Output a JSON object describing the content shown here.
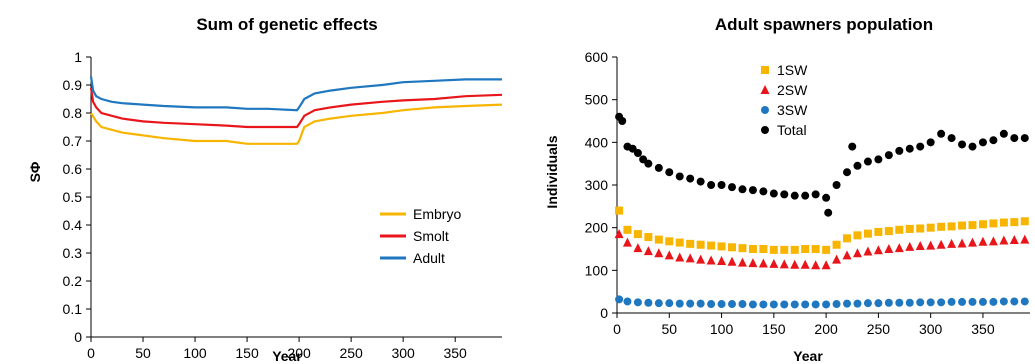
{
  "chart_data": [
    {
      "type": "line",
      "title": "Sum of genetic effects",
      "xlabel": "Year",
      "ylabel": "SΦ",
      "xlim": [
        0,
        395
      ],
      "ylim": [
        0,
        1
      ],
      "xticks": [
        0,
        50,
        100,
        150,
        200,
        250,
        300,
        350
      ],
      "yticks": [
        0,
        0.1,
        0.2,
        0.3,
        0.4,
        0.5,
        0.6,
        0.7,
        0.8,
        0.9,
        1
      ],
      "ytick_labels": [
        "0",
        "0.1",
        "0.2",
        "0.3",
        "0.4",
        "0.5",
        "0.6",
        "0.7",
        "0.8",
        "0.9",
        "1"
      ],
      "legend_position": "bottom-right",
      "series": [
        {
          "name": "Embryo",
          "color": "#F7B500",
          "x": [
            0,
            5,
            10,
            20,
            30,
            50,
            70,
            100,
            130,
            150,
            170,
            198,
            200,
            205,
            215,
            230,
            250,
            280,
            300,
            330,
            360,
            395
          ],
          "y": [
            0.8,
            0.77,
            0.75,
            0.74,
            0.73,
            0.72,
            0.71,
            0.7,
            0.7,
            0.69,
            0.69,
            0.69,
            0.7,
            0.75,
            0.77,
            0.78,
            0.79,
            0.8,
            0.81,
            0.82,
            0.825,
            0.83
          ]
        },
        {
          "name": "Smolt",
          "color": "#E8161B",
          "x": [
            0,
            2,
            5,
            10,
            20,
            30,
            50,
            70,
            100,
            130,
            150,
            170,
            198,
            200,
            205,
            215,
            230,
            250,
            280,
            300,
            330,
            360,
            395
          ],
          "y": [
            0.89,
            0.84,
            0.82,
            0.8,
            0.79,
            0.78,
            0.77,
            0.765,
            0.76,
            0.755,
            0.75,
            0.75,
            0.75,
            0.76,
            0.79,
            0.81,
            0.82,
            0.83,
            0.84,
            0.845,
            0.85,
            0.86,
            0.865
          ]
        },
        {
          "name": "Adult",
          "color": "#1F77C0",
          "x": [
            0,
            2,
            5,
            10,
            20,
            30,
            50,
            70,
            100,
            130,
            150,
            170,
            198,
            200,
            205,
            215,
            230,
            250,
            280,
            300,
            330,
            360,
            395
          ],
          "y": [
            0.93,
            0.88,
            0.86,
            0.85,
            0.84,
            0.835,
            0.83,
            0.825,
            0.82,
            0.82,
            0.815,
            0.815,
            0.81,
            0.82,
            0.85,
            0.87,
            0.88,
            0.89,
            0.9,
            0.91,
            0.915,
            0.92,
            0.92
          ]
        }
      ]
    },
    {
      "type": "scatter",
      "title": "Adult spawners population",
      "xlabel": "Year",
      "ylabel": "Individuals",
      "xlim": [
        0,
        395
      ],
      "ylim": [
        0,
        600
      ],
      "xticks": [
        0,
        50,
        100,
        150,
        200,
        250,
        300,
        350
      ],
      "yticks": [
        0,
        100,
        200,
        300,
        400,
        500,
        600
      ],
      "legend_position": "top-left",
      "series": [
        {
          "name": "1SW",
          "color": "#F7B500",
          "marker": "square",
          "x": [
            2,
            10,
            20,
            30,
            40,
            50,
            60,
            70,
            80,
            90,
            100,
            110,
            120,
            130,
            140,
            150,
            160,
            170,
            180,
            190,
            200,
            210,
            220,
            230,
            240,
            250,
            260,
            270,
            280,
            290,
            300,
            310,
            320,
            330,
            340,
            350,
            360,
            370,
            380,
            390
          ],
          "y": [
            240,
            195,
            185,
            178,
            172,
            168,
            165,
            162,
            160,
            158,
            156,
            154,
            152,
            150,
            150,
            148,
            148,
            148,
            150,
            150,
            148,
            160,
            175,
            182,
            186,
            190,
            192,
            195,
            197,
            198,
            200,
            202,
            203,
            205,
            206,
            208,
            210,
            212,
            213,
            215
          ]
        },
        {
          "name": "2SW",
          "color": "#E8161B",
          "marker": "triangle",
          "x": [
            2,
            10,
            20,
            30,
            40,
            50,
            60,
            70,
            80,
            90,
            100,
            110,
            120,
            130,
            140,
            150,
            160,
            170,
            180,
            190,
            200,
            210,
            220,
            230,
            240,
            250,
            260,
            270,
            280,
            290,
            300,
            310,
            320,
            330,
            340,
            350,
            360,
            370,
            380,
            390
          ],
          "y": [
            185,
            165,
            152,
            145,
            140,
            135,
            130,
            128,
            125,
            123,
            122,
            120,
            118,
            117,
            116,
            115,
            114,
            113,
            113,
            112,
            112,
            125,
            135,
            140,
            144,
            147,
            150,
            152,
            155,
            157,
            158,
            160,
            162,
            163,
            165,
            167,
            168,
            170,
            171,
            172
          ]
        },
        {
          "name": "3SW",
          "color": "#1F77C0",
          "marker": "circle",
          "x": [
            2,
            10,
            20,
            30,
            40,
            50,
            60,
            70,
            80,
            90,
            100,
            110,
            120,
            130,
            140,
            150,
            160,
            170,
            180,
            190,
            200,
            210,
            220,
            230,
            240,
            250,
            260,
            270,
            280,
            290,
            300,
            310,
            320,
            330,
            340,
            350,
            360,
            370,
            380,
            390
          ],
          "y": [
            32,
            27,
            25,
            24,
            23,
            23,
            22,
            22,
            22,
            21,
            21,
            21,
            21,
            20,
            20,
            20,
            20,
            20,
            20,
            20,
            20,
            21,
            22,
            22,
            23,
            23,
            24,
            24,
            24,
            25,
            25,
            25,
            26,
            26,
            26,
            26,
            26,
            27,
            27,
            27
          ]
        },
        {
          "name": "Total",
          "color": "#000000",
          "marker": "circle",
          "x": [
            2,
            5,
            10,
            15,
            20,
            25,
            30,
            40,
            50,
            60,
            70,
            80,
            90,
            100,
            110,
            120,
            130,
            140,
            150,
            160,
            170,
            180,
            190,
            200,
            202,
            210,
            220,
            225,
            230,
            240,
            250,
            260,
            270,
            280,
            290,
            300,
            310,
            320,
            330,
            340,
            350,
            360,
            370,
            380,
            390
          ],
          "y": [
            460,
            450,
            390,
            385,
            375,
            360,
            350,
            340,
            330,
            320,
            315,
            308,
            300,
            300,
            295,
            290,
            288,
            285,
            280,
            278,
            275,
            275,
            278,
            270,
            235,
            300,
            330,
            390,
            345,
            355,
            360,
            370,
            380,
            385,
            390,
            400,
            420,
            410,
            395,
            390,
            400,
            405,
            420,
            410,
            410
          ]
        }
      ]
    }
  ]
}
